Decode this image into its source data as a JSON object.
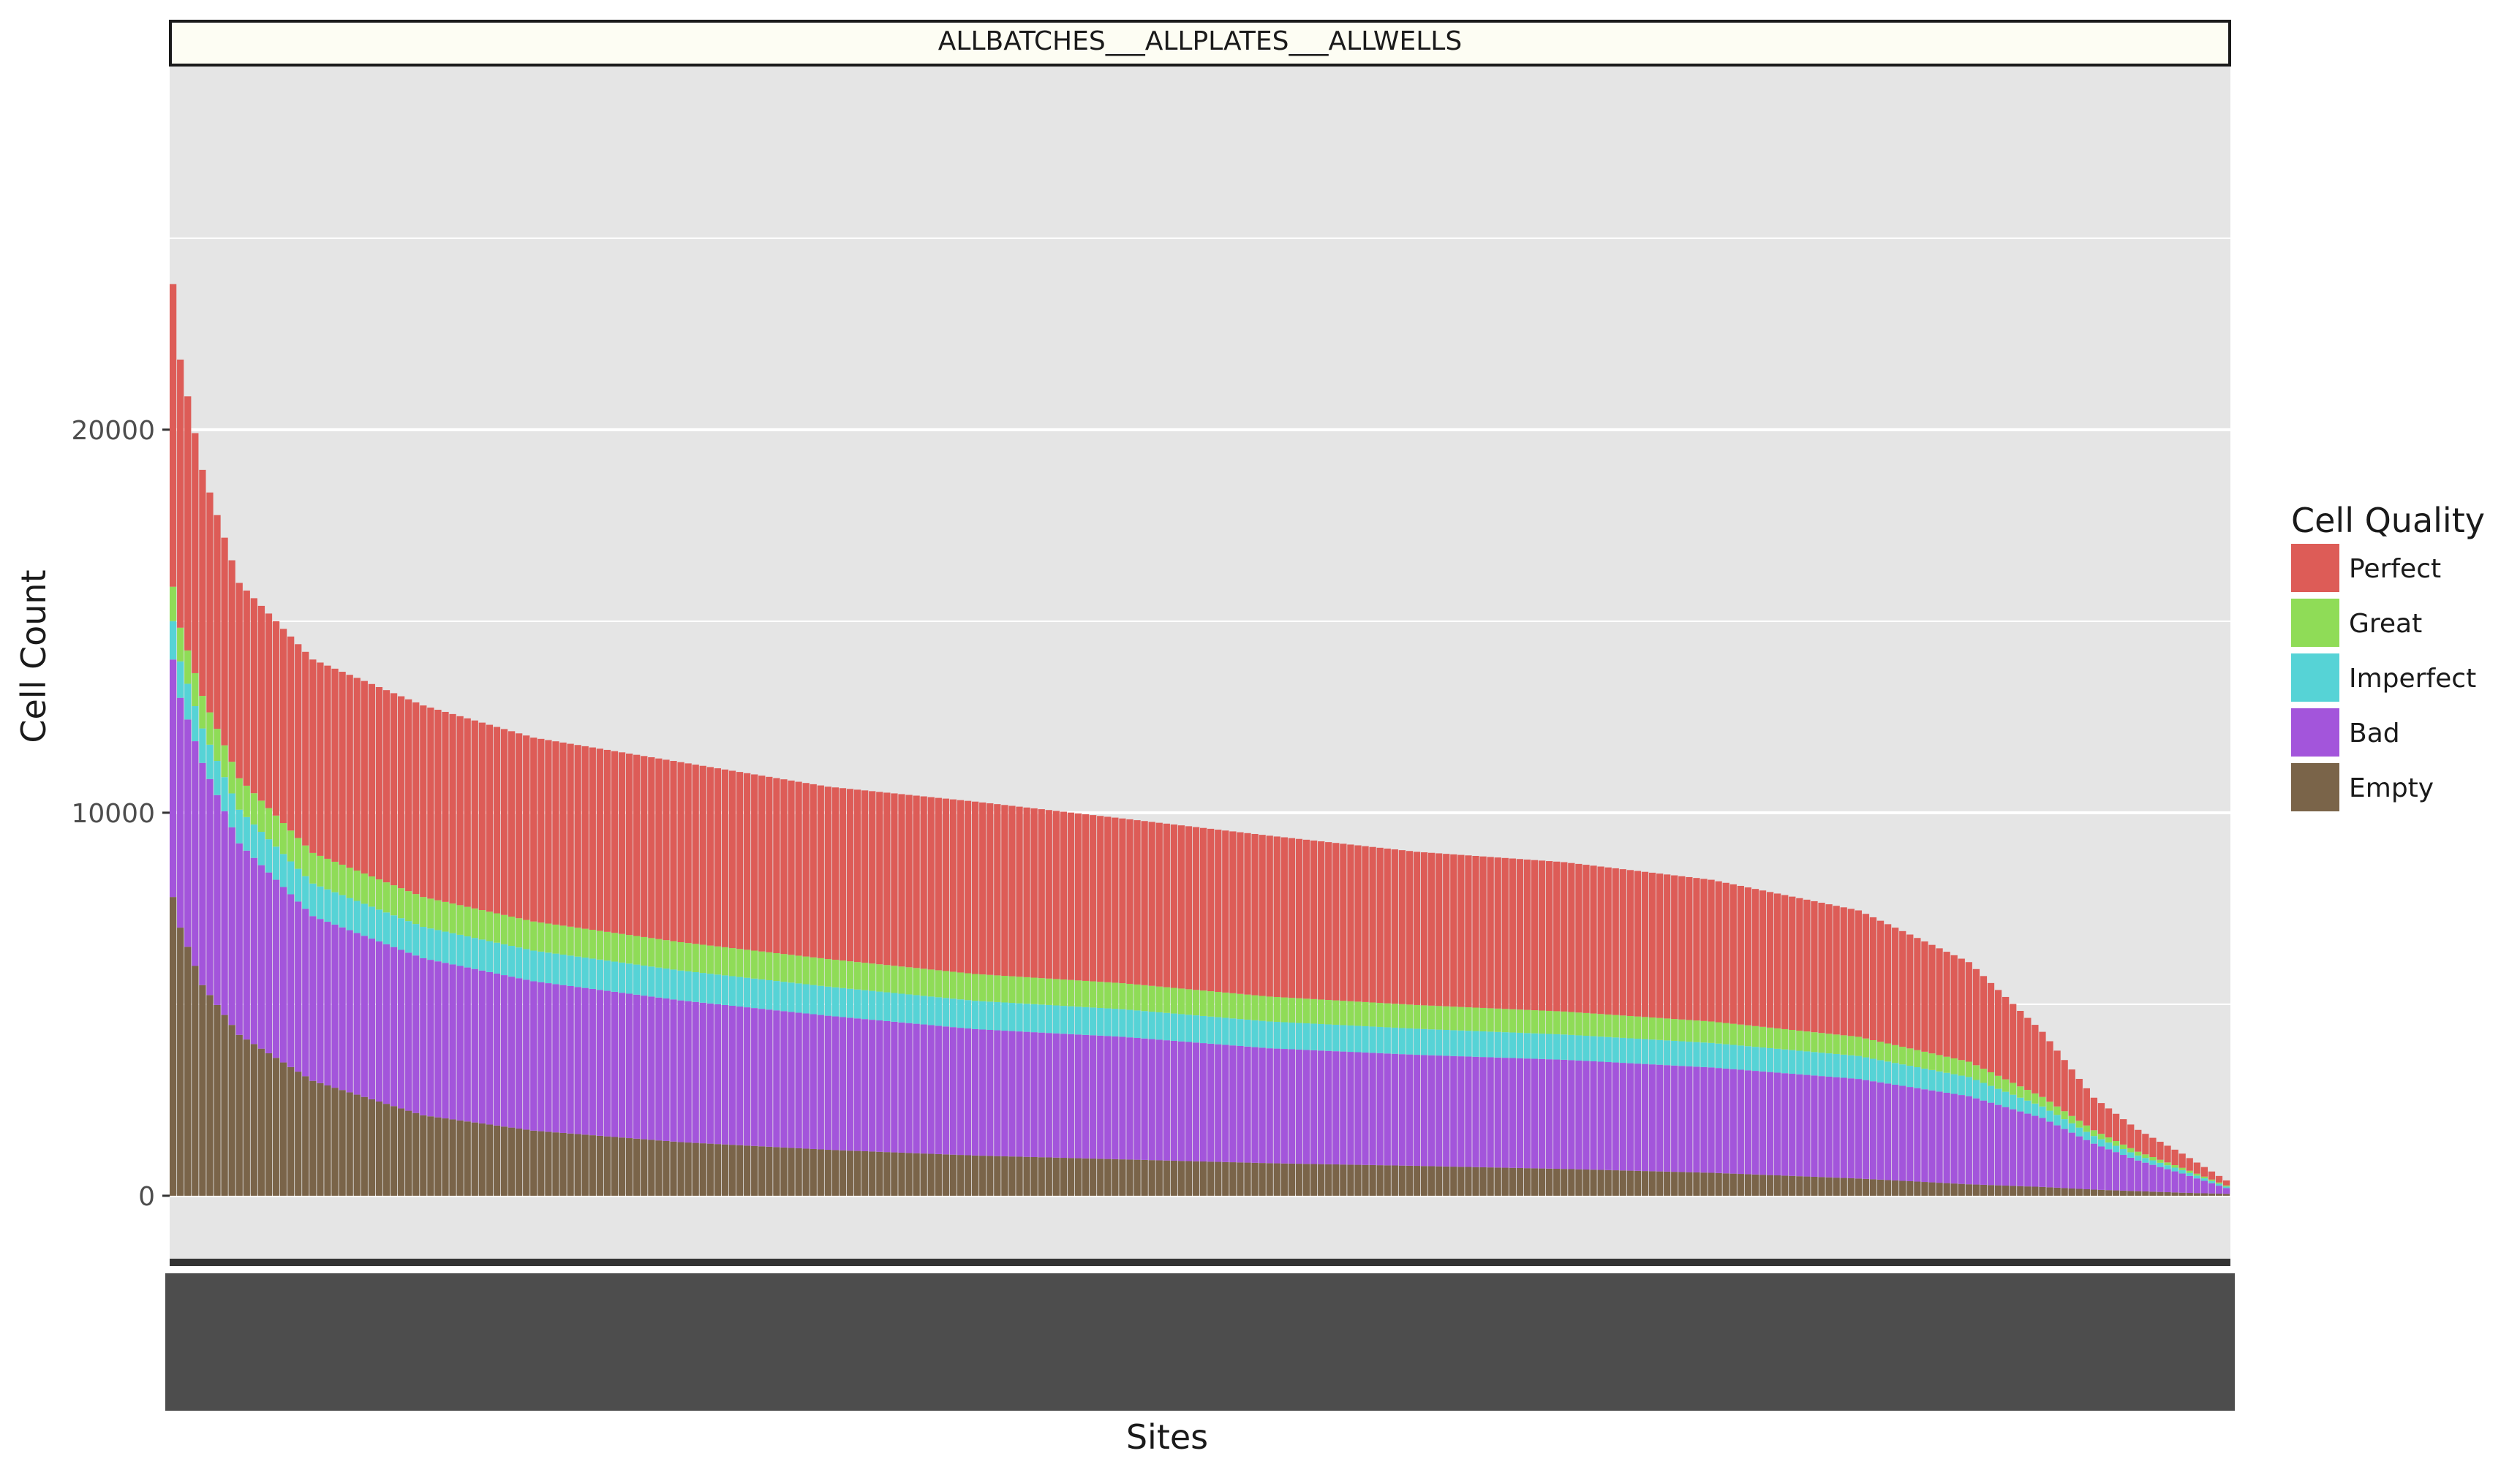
{
  "chart_data": {
    "type": "bar",
    "stacked": true,
    "panel_title": "ALLBATCHES___ALLPLATES___ALLWELLS",
    "title": "",
    "xlabel": "Sites",
    "ylabel": "Cell Count",
    "ylim": [
      -1700,
      29500
    ],
    "yticks": [
      0,
      10000,
      20000
    ],
    "grid": true,
    "legend": {
      "title": "Cell Quality",
      "position": "right"
    },
    "x_tick_labels_visible": false,
    "n_sites": 280,
    "category_profile_note": "Sites sorted by total cell count (descending); values given at sampled site ranks",
    "site_rank": [
      1,
      2,
      5,
      10,
      20,
      35,
      50,
      70,
      90,
      110,
      130,
      150,
      170,
      190,
      210,
      230,
      245,
      255,
      262,
      268,
      274,
      280
    ],
    "series": [
      {
        "name": "Empty",
        "color": "#7a6449",
        "values": [
          7800,
          7000,
          5500,
          4200,
          3000,
          2100,
          1700,
          1400,
          1200,
          1050,
          950,
          850,
          780,
          700,
          600,
          450,
          300,
          230,
          160,
          120,
          80,
          50
        ]
      },
      {
        "name": "Bad",
        "color": "#a355db",
        "values": [
          6200,
          6000,
          5800,
          5000,
          4300,
          4100,
          3900,
          3700,
          3500,
          3300,
          3200,
          3000,
          2900,
          2850,
          2750,
          2600,
          2300,
          1800,
          1200,
          800,
          500,
          150
        ]
      },
      {
        "name": "Imperfect",
        "color": "#56d3d6",
        "values": [
          1000,
          950,
          900,
          880,
          850,
          820,
          800,
          780,
          760,
          740,
          720,
          700,
          680,
          660,
          640,
          600,
          500,
          300,
          200,
          130,
          90,
          40
        ]
      },
      {
        "name": "Great",
        "color": "#8fdc57",
        "values": [
          900,
          880,
          850,
          820,
          800,
          780,
          760,
          740,
          720,
          700,
          680,
          650,
          620,
          600,
          560,
          500,
          400,
          250,
          150,
          100,
          60,
          30
        ]
      },
      {
        "name": "Perfect",
        "color": "#dd5c57",
        "values": [
          7900,
          7000,
          5900,
          5100,
          5050,
          5000,
          4800,
          4700,
          4500,
          4500,
          4300,
          4200,
          4000,
          3900,
          3700,
          3300,
          2600,
          1700,
          850,
          570,
          370,
          130
        ]
      }
    ]
  },
  "colors": {
    "panel_background": "#e5e5e5",
    "strip_background": "#fdfdf3",
    "gridline": "#ffffff",
    "axis_text": "#4d4d4d"
  }
}
